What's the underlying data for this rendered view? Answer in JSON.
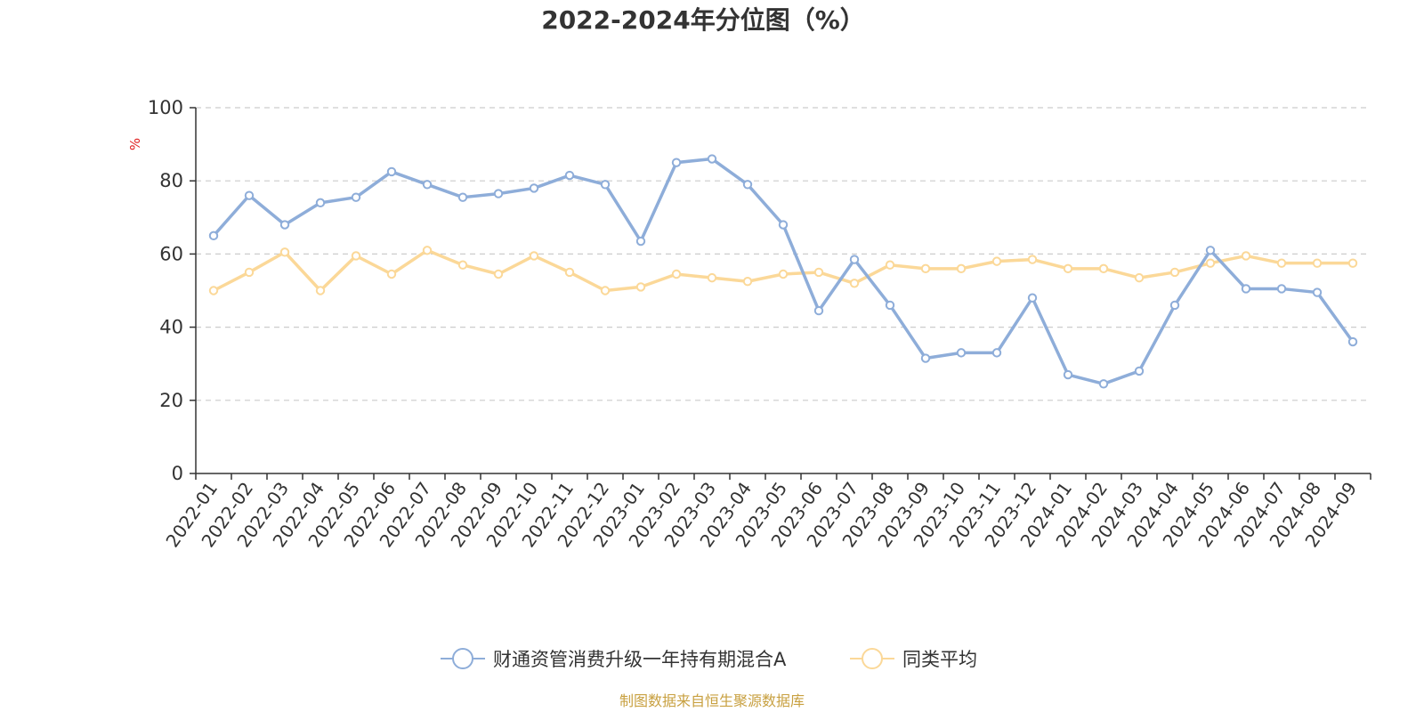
{
  "chart_data": {
    "type": "line",
    "title": "2022-2024年分位图（%）",
    "ylabel": "%",
    "ylim": [
      0,
      100
    ],
    "yticks": [
      0,
      20,
      40,
      60,
      80,
      100
    ],
    "grid": true,
    "legend_position": "bottom-center",
    "categories": [
      "2022-01",
      "2022-02",
      "2022-03",
      "2022-04",
      "2022-05",
      "2022-06",
      "2022-07",
      "2022-08",
      "2022-09",
      "2022-10",
      "2022-11",
      "2022-12",
      "2023-01",
      "2023-02",
      "2023-03",
      "2023-04",
      "2023-05",
      "2023-06",
      "2023-07",
      "2023-08",
      "2023-09",
      "2023-10",
      "2023-11",
      "2023-12",
      "2024-01",
      "2024-02",
      "2024-03",
      "2024-04",
      "2024-05",
      "2024-06",
      "2024-07",
      "2024-08",
      "2024-09"
    ],
    "series": [
      {
        "name": "财通资管消费升级一年持有期混合A",
        "color": "#8eadd9",
        "values": [
          65,
          76,
          68,
          74,
          75.5,
          82.5,
          79,
          75.5,
          76.5,
          78,
          81.5,
          79,
          63.5,
          85,
          86,
          79,
          68,
          44.5,
          58.5,
          46,
          31.5,
          33,
          33,
          48,
          27,
          24.5,
          28,
          46,
          61,
          50.5,
          50.5,
          49.5,
          36
        ]
      },
      {
        "name": "同类平均",
        "color": "#fbd898",
        "values": [
          50,
          55,
          60.5,
          50,
          59.5,
          54.5,
          61,
          57,
          54.5,
          59.5,
          55,
          50,
          51,
          54.5,
          53.5,
          52.5,
          54.5,
          55,
          52,
          57,
          56,
          56,
          58,
          58.5,
          56,
          56,
          53.5,
          55,
          57.5,
          59.5,
          57.5,
          57.5,
          57.5
        ]
      }
    ]
  },
  "source": "制图数据来自恒生聚源数据库",
  "colors": {
    "unit": "#e02020",
    "source": "#c8a040",
    "grid": "#cccccc",
    "axis": "#333333"
  }
}
